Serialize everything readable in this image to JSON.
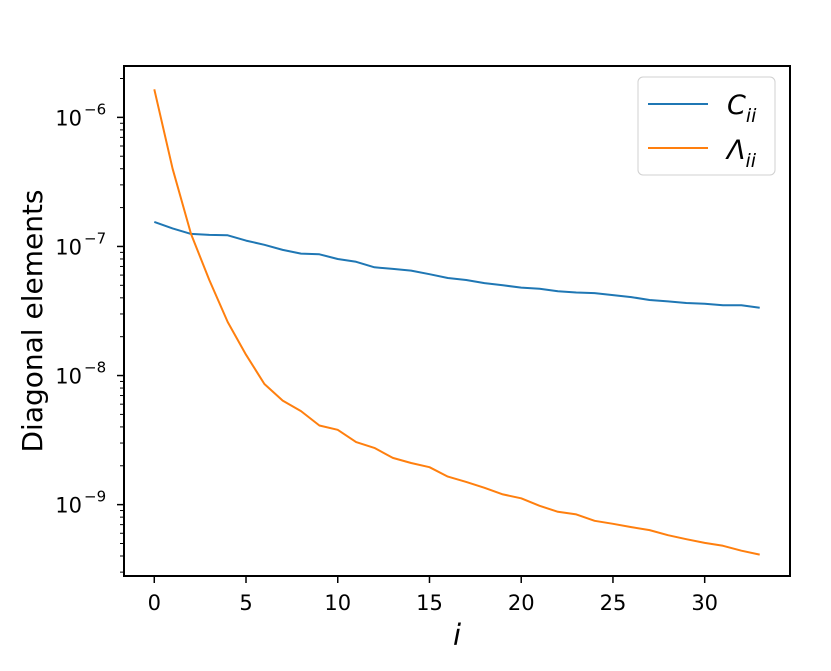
{
  "chart_data": {
    "type": "line",
    "title": "",
    "xlabel": "i",
    "ylabel": "Diagonal elements",
    "xlim": [
      -1.65,
      34.65
    ],
    "ylim": [
      2.8e-10,
      2.5e-06
    ],
    "yscale": "log",
    "grid": false,
    "legend_position": "top-right",
    "x_ticks": [
      0,
      5,
      10,
      15,
      20,
      25,
      30
    ],
    "x_tick_labels": [
      "0",
      "5",
      "10",
      "15",
      "20",
      "25",
      "30"
    ],
    "y_ticks": [
      {
        "value": 1e-06,
        "base": "10",
        "exp": "−6"
      },
      {
        "value": 1e-07,
        "base": "10",
        "exp": "−7"
      },
      {
        "value": 1e-08,
        "base": "10",
        "exp": "−8"
      },
      {
        "value": 1e-09,
        "base": "10",
        "exp": "−9"
      }
    ],
    "x": [
      0,
      1,
      2,
      3,
      4,
      5,
      6,
      7,
      8,
      9,
      10,
      11,
      12,
      13,
      14,
      15,
      16,
      17,
      18,
      19,
      20,
      21,
      22,
      23,
      24,
      25,
      26,
      27,
      28,
      29,
      30,
      31,
      32,
      33
    ],
    "series": [
      {
        "name": "C",
        "name_sub": "ii",
        "color": "#1f77b4",
        "values": [
          1.55e-07,
          1.38e-07,
          1.25e-07,
          1.23e-07,
          1.22e-07,
          1.11e-07,
          1.03e-07,
          9.4e-08,
          8.8e-08,
          8.7e-08,
          8e-08,
          7.6e-08,
          6.9e-08,
          6.7e-08,
          6.5e-08,
          6.1e-08,
          5.7e-08,
          5.5e-08,
          5.2e-08,
          5e-08,
          4.8e-08,
          4.7e-08,
          4.5e-08,
          4.4e-08,
          4.35e-08,
          4.2e-08,
          4.05e-08,
          3.85e-08,
          3.75e-08,
          3.65e-08,
          3.6e-08,
          3.5e-08,
          3.5e-08,
          3.35e-08
        ]
      },
      {
        "name": "Λ",
        "name_sub": "ii",
        "color": "#ff7f0e",
        "values": [
          1.65e-06,
          4e-07,
          1.25e-07,
          5.5e-08,
          2.6e-08,
          1.45e-08,
          8.6e-09,
          6.4e-09,
          5.3e-09,
          4.1e-09,
          3.8e-09,
          3.05e-09,
          2.75e-09,
          2.3e-09,
          2.1e-09,
          1.95e-09,
          1.65e-09,
          1.5e-09,
          1.35e-09,
          1.2e-09,
          1.12e-09,
          9.8e-10,
          8.8e-10,
          8.4e-10,
          7.5e-10,
          7.1e-10,
          6.7e-10,
          6.35e-10,
          5.8e-10,
          5.4e-10,
          5.05e-10,
          4.8e-10,
          4.4e-10,
          4.1e-10
        ]
      }
    ]
  }
}
